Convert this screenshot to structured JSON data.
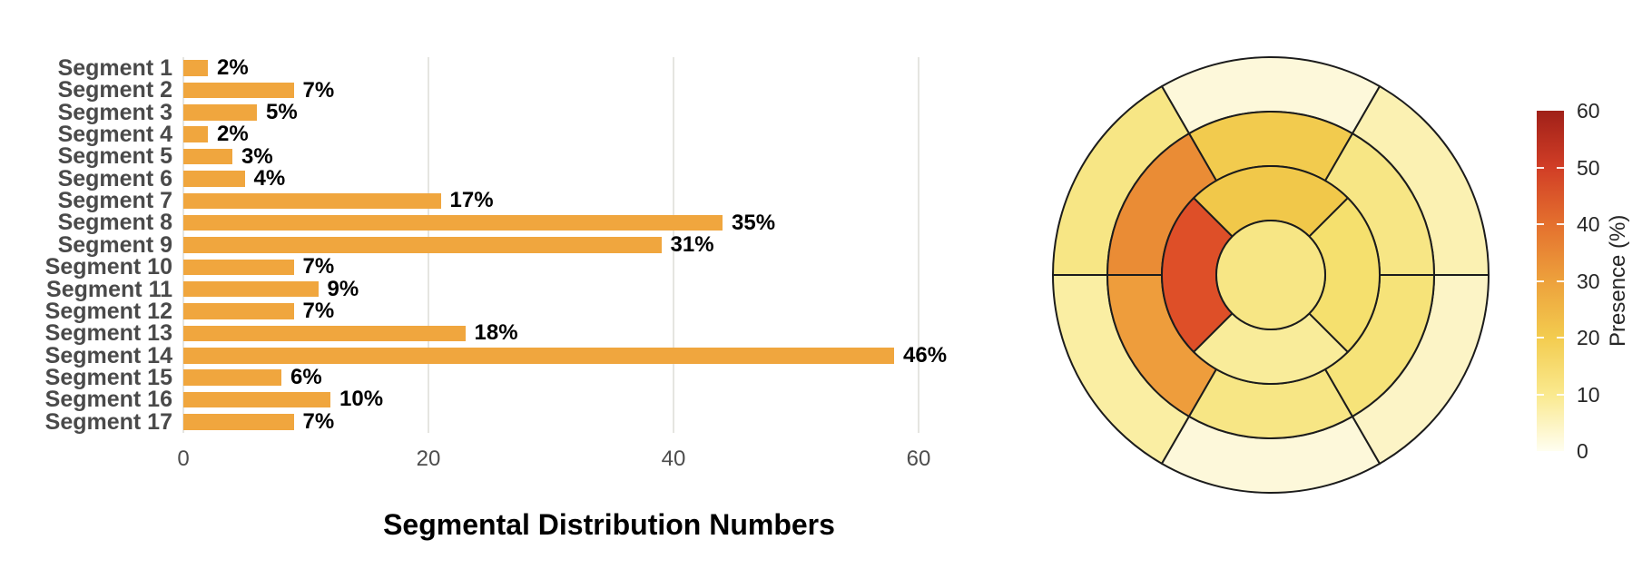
{
  "chart_data": [
    {
      "type": "bar",
      "orientation": "horizontal",
      "title": "Segmental Distribution Numbers",
      "xlabel": "Segmental Distribution Numbers",
      "ylabel": "",
      "categories": [
        "Segment 1",
        "Segment 2",
        "Segment 3",
        "Segment 4",
        "Segment 5",
        "Segment 6",
        "Segment 7",
        "Segment 8",
        "Segment 9",
        "Segment 10",
        "Segment 11",
        "Segment 12",
        "Segment 13",
        "Segment 14",
        "Segment 15",
        "Segment 16",
        "Segment 17"
      ],
      "values": [
        2,
        9,
        6,
        2,
        4,
        5,
        21,
        44,
        39,
        9,
        11,
        9,
        23,
        58,
        8,
        12,
        9
      ],
      "bar_labels": [
        "2%",
        "7%",
        "5%",
        "2%",
        "3%",
        "4%",
        "17%",
        "35%",
        "31%",
        "7%",
        "9%",
        "7%",
        "18%",
        "46%",
        "6%",
        "10%",
        "7%"
      ],
      "x_ticks": [
        0,
        20,
        40,
        60
      ],
      "xlim": [
        0,
        60
      ],
      "grid": true,
      "legend": false,
      "bar_color": "#F0A63E",
      "grid_color": "#e5e5e1",
      "axis_text_color": "#4d4d4d",
      "category_label_color": "#4a4a4a",
      "value_label_color": "#000000"
    },
    {
      "type": "heatmap",
      "subtype": "polar-bullseye-aha-17-segment",
      "title": "",
      "outline_color": "#1c1c1c",
      "ring_radii": [
        60,
        120,
        180,
        240
      ],
      "segments": [
        {
          "id": 1,
          "ring": "basal",
          "position": "anterior",
          "a0": 60,
          "a1": 120,
          "value": 2,
          "color": "#FDF8DA"
        },
        {
          "id": 2,
          "ring": "basal",
          "position": "anteroseptal",
          "a0": 120,
          "a1": 180,
          "value": 7,
          "color": "#F7E685"
        },
        {
          "id": 3,
          "ring": "basal",
          "position": "inferoseptal",
          "a0": 180,
          "a1": 240,
          "value": 5,
          "color": "#FAEEA3"
        },
        {
          "id": 4,
          "ring": "basal",
          "position": "inferior",
          "a0": 240,
          "a1": 300,
          "value": 2,
          "color": "#FDF8DA"
        },
        {
          "id": 5,
          "ring": "basal",
          "position": "inferolateral",
          "a0": 300,
          "a1": 360,
          "value": 3,
          "color": "#FCF4C6"
        },
        {
          "id": 6,
          "ring": "basal",
          "position": "anterolateral",
          "a0": 0,
          "a1": 60,
          "value": 4,
          "color": "#FBF1B2"
        },
        {
          "id": 7,
          "ring": "mid",
          "position": "anterior",
          "a0": 60,
          "a1": 120,
          "value": 17,
          "color": "#F2CB4E"
        },
        {
          "id": 8,
          "ring": "mid",
          "position": "anteroseptal",
          "a0": 120,
          "a1": 180,
          "value": 35,
          "color": "#EA8C35"
        },
        {
          "id": 9,
          "ring": "mid",
          "position": "inferoseptal",
          "a0": 180,
          "a1": 240,
          "value": 31,
          "color": "#EE9D3C"
        },
        {
          "id": 10,
          "ring": "mid",
          "position": "inferior",
          "a0": 240,
          "a1": 300,
          "value": 7,
          "color": "#F7E685"
        },
        {
          "id": 11,
          "ring": "mid",
          "position": "inferolateral",
          "a0": 300,
          "a1": 360,
          "value": 9,
          "color": "#F6E379"
        },
        {
          "id": 12,
          "ring": "mid",
          "position": "anterolateral",
          "a0": 0,
          "a1": 60,
          "value": 7,
          "color": "#F7E685"
        },
        {
          "id": 13,
          "ring": "apical",
          "position": "anterior",
          "a0": 45,
          "a1": 135,
          "value": 18,
          "color": "#F1C84A"
        },
        {
          "id": 14,
          "ring": "apical",
          "position": "septal",
          "a0": 135,
          "a1": 225,
          "value": 46,
          "color": "#DE4F28"
        },
        {
          "id": 15,
          "ring": "apical",
          "position": "inferior",
          "a0": 225,
          "a1": 315,
          "value": 6,
          "color": "#F9EC9A"
        },
        {
          "id": 16,
          "ring": "apical",
          "position": "lateral",
          "a0": 315,
          "a1": 405,
          "value": 10,
          "color": "#F5E06E"
        },
        {
          "id": 17,
          "ring": "apex",
          "position": "apex",
          "a0": 0,
          "a1": 360,
          "value": 7,
          "color": "#F7E685"
        }
      ],
      "colorbar": {
        "label": "Presence (%)",
        "ticks": [
          0,
          10,
          20,
          30,
          40,
          50,
          60
        ],
        "range": [
          0,
          60
        ],
        "gradient": [
          {
            "v": 0,
            "c": "#FFFEF0"
          },
          {
            "v": 10,
            "c": "#FAE98E"
          },
          {
            "v": 20,
            "c": "#F3CC4F"
          },
          {
            "v": 30,
            "c": "#EDA13C"
          },
          {
            "v": 40,
            "c": "#E4702E"
          },
          {
            "v": 50,
            "c": "#D13E26"
          },
          {
            "v": 60,
            "c": "#A02019"
          }
        ]
      }
    }
  ]
}
